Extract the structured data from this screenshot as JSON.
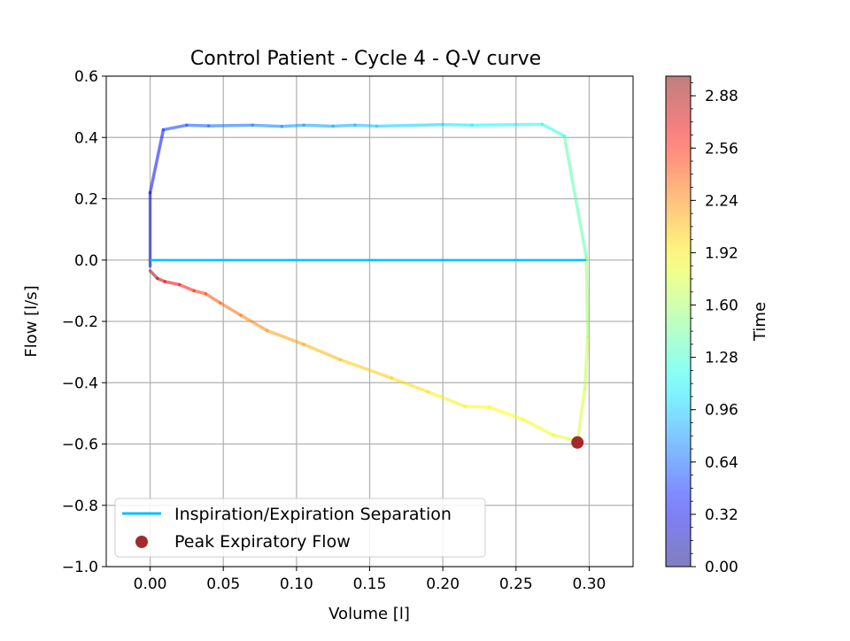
{
  "chart_data": {
    "type": "line",
    "title": "Control Patient - Cycle 4 - Q-V curve",
    "xlabel": "Volume [l]",
    "ylabel": "Flow [l/s]",
    "xlim": [
      -0.03,
      0.33
    ],
    "ylim": [
      -1.0,
      0.6
    ],
    "xticks": [
      0.0,
      0.05,
      0.1,
      0.15,
      0.2,
      0.25,
      0.3
    ],
    "xtick_labels": [
      "0.00",
      "0.05",
      "0.10",
      "0.15",
      "0.20",
      "0.25",
      "0.30"
    ],
    "yticks": [
      0.6,
      0.4,
      0.2,
      0.0,
      -0.2,
      -0.4,
      -0.6,
      -0.8,
      -1.0
    ],
    "ytick_labels": [
      "0.6",
      "0.4",
      "0.2",
      "0.0",
      "−0.2",
      "−0.4",
      "−0.6",
      "−0.8",
      "−1.0"
    ],
    "grid": true,
    "legend_position": "bottom-left",
    "legend": [
      {
        "label": "Inspiration/Expiration Separation",
        "kind": "line",
        "color": "#00bfff"
      },
      {
        "label": "Peak Expiratory Flow",
        "kind": "marker",
        "color": "#a52a2a"
      }
    ],
    "colormap": "jet",
    "colorbar": {
      "label": "Time",
      "range": [
        0.0,
        3.0
      ],
      "ticks": [
        0.0,
        0.32,
        0.64,
        0.96,
        1.28,
        1.6,
        1.92,
        2.24,
        2.56,
        2.88
      ],
      "tick_labels": [
        "0.00",
        "0.32",
        "0.64",
        "0.96",
        "1.28",
        "1.60",
        "1.92",
        "2.24",
        "2.56",
        "2.88"
      ]
    },
    "series": [
      {
        "kind": "time-colored-loop",
        "points": [
          {
            "v": 0.0,
            "q": -0.02,
            "t": 0.0
          },
          {
            "v": 0.0,
            "q": 0.22,
            "t": 0.3
          },
          {
            "v": 0.009,
            "q": 0.425,
            "t": 0.5
          },
          {
            "v": 0.025,
            "q": 0.44,
            "t": 0.6
          },
          {
            "v": 0.04,
            "q": 0.438,
            "t": 0.65
          },
          {
            "v": 0.07,
            "q": 0.44,
            "t": 0.72
          },
          {
            "v": 0.09,
            "q": 0.436,
            "t": 0.78
          },
          {
            "v": 0.105,
            "q": 0.44,
            "t": 0.82
          },
          {
            "v": 0.125,
            "q": 0.437,
            "t": 0.86
          },
          {
            "v": 0.14,
            "q": 0.44,
            "t": 0.9
          },
          {
            "v": 0.155,
            "q": 0.437,
            "t": 0.94
          },
          {
            "v": 0.2,
            "q": 0.442,
            "t": 1.03
          },
          {
            "v": 0.22,
            "q": 0.44,
            "t": 1.08
          },
          {
            "v": 0.25,
            "q": 0.442,
            "t": 1.14
          },
          {
            "v": 0.268,
            "q": 0.443,
            "t": 1.18
          },
          {
            "v": 0.283,
            "q": 0.405,
            "t": 1.25
          },
          {
            "v": 0.298,
            "q": 0.01,
            "t": 1.5
          },
          {
            "v": 0.299,
            "q": -0.25,
            "t": 1.65
          },
          {
            "v": 0.297,
            "q": -0.42,
            "t": 1.72
          },
          {
            "v": 0.292,
            "q": -0.59,
            "t": 1.78
          },
          {
            "v": 0.275,
            "q": -0.57,
            "t": 1.82
          },
          {
            "v": 0.255,
            "q": -0.52,
            "t": 1.86
          },
          {
            "v": 0.232,
            "q": -0.48,
            "t": 1.88
          },
          {
            "v": 0.215,
            "q": -0.477,
            "t": 1.9
          },
          {
            "v": 0.19,
            "q": -0.43,
            "t": 1.95
          },
          {
            "v": 0.165,
            "q": -0.385,
            "t": 2.0
          },
          {
            "v": 0.13,
            "q": -0.325,
            "t": 2.07
          },
          {
            "v": 0.105,
            "q": -0.275,
            "t": 2.13
          },
          {
            "v": 0.08,
            "q": -0.23,
            "t": 2.2
          },
          {
            "v": 0.062,
            "q": -0.18,
            "t": 2.28
          },
          {
            "v": 0.048,
            "q": -0.14,
            "t": 2.35
          },
          {
            "v": 0.038,
            "q": -0.11,
            "t": 2.44
          },
          {
            "v": 0.03,
            "q": -0.1,
            "t": 2.52
          },
          {
            "v": 0.02,
            "q": -0.08,
            "t": 2.62
          },
          {
            "v": 0.01,
            "q": -0.07,
            "t": 2.72
          },
          {
            "v": 0.005,
            "q": -0.06,
            "t": 2.8
          },
          {
            "v": 0.0,
            "q": -0.035,
            "t": 2.95
          }
        ]
      },
      {
        "kind": "separation-line",
        "points": [
          {
            "v": 0.0,
            "q": 0.0
          },
          {
            "v": 0.298,
            "q": 0.0
          }
        ]
      },
      {
        "kind": "peak-marker",
        "points": [
          {
            "v": 0.292,
            "q": -0.595
          }
        ]
      }
    ]
  }
}
